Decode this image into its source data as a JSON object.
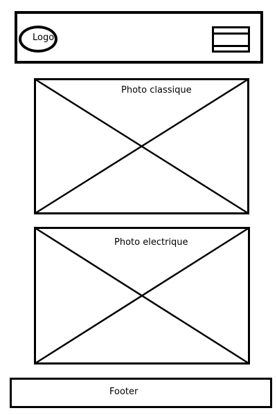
{
  "header": {
    "logo_text": "Logo",
    "menu_icon": "hamburger-menu-icon"
  },
  "photos": [
    {
      "label": "Photo classique",
      "icon": "image-placeholder-icon"
    },
    {
      "label": "Photo electrique",
      "icon": "image-placeholder-icon"
    }
  ],
  "footer": {
    "label": "Footer"
  }
}
